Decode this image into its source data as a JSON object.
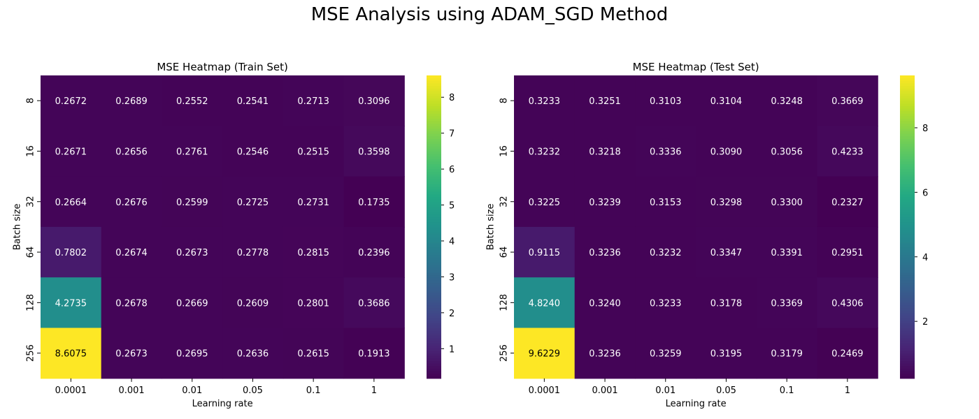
{
  "suptitle": "MSE Analysis using ADAM_SGD Method",
  "chart_data": [
    {
      "type": "heatmap",
      "title": "MSE Heatmap (Train Set)",
      "xlabel": "Learning rate",
      "ylabel": "Batch size",
      "x_categories": [
        "0.0001",
        "0.001",
        "0.01",
        "0.05",
        "0.1",
        "1"
      ],
      "y_categories": [
        "8",
        "16",
        "32",
        "64",
        "128",
        "256"
      ],
      "values": [
        [
          0.2672,
          0.2689,
          0.2552,
          0.2541,
          0.2713,
          0.3096
        ],
        [
          0.2671,
          0.2656,
          0.2761,
          0.2546,
          0.2515,
          0.3598
        ],
        [
          0.2664,
          0.2676,
          0.2599,
          0.2725,
          0.2731,
          0.1735
        ],
        [
          0.7802,
          0.2674,
          0.2673,
          0.2778,
          0.2815,
          0.2396
        ],
        [
          4.2735,
          0.2678,
          0.2669,
          0.2609,
          0.2801,
          0.3686
        ],
        [
          8.6075,
          0.2673,
          0.2695,
          0.2636,
          0.2615,
          0.1913
        ]
      ],
      "colormap": "viridis",
      "colorbar_range": [
        0.1735,
        8.6075
      ],
      "colorbar_ticks": [
        "1",
        "2",
        "3",
        "4",
        "5",
        "6",
        "7",
        "8"
      ]
    },
    {
      "type": "heatmap",
      "title": "MSE Heatmap (Test Set)",
      "xlabel": "Learning rate",
      "ylabel": "Batch size",
      "x_categories": [
        "0.0001",
        "0.001",
        "0.01",
        "0.05",
        "0.1",
        "1"
      ],
      "y_categories": [
        "8",
        "16",
        "32",
        "64",
        "128",
        "256"
      ],
      "values": [
        [
          0.3233,
          0.3251,
          0.3103,
          0.3104,
          0.3248,
          0.3669
        ],
        [
          0.3232,
          0.3218,
          0.3336,
          0.309,
          0.3056,
          0.4233
        ],
        [
          0.3225,
          0.3239,
          0.3153,
          0.3298,
          0.33,
          0.2327
        ],
        [
          0.9115,
          0.3236,
          0.3232,
          0.3347,
          0.3391,
          0.2951
        ],
        [
          4.824,
          0.324,
          0.3233,
          0.3178,
          0.3369,
          0.4306
        ],
        [
          9.6229,
          0.3236,
          0.3259,
          0.3195,
          0.3179,
          0.2469
        ]
      ],
      "colormap": "viridis",
      "colorbar_range": [
        0.2327,
        9.6229
      ],
      "colorbar_ticks": [
        "2",
        "4",
        "6",
        "8"
      ]
    }
  ]
}
